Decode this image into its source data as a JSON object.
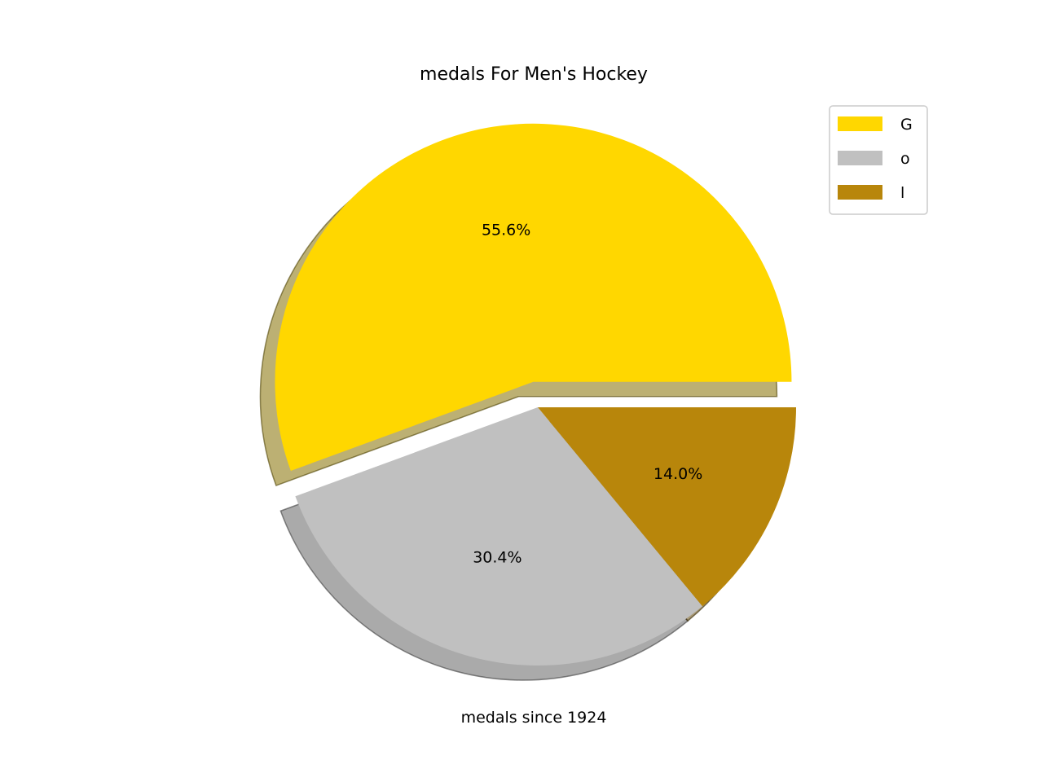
{
  "chart_data": {
    "type": "pie",
    "title": "medals For Men's Hockey",
    "xlabel": "medals since 1924",
    "slices": [
      {
        "label": "G",
        "value": 55.6,
        "pct_label": "55.6%",
        "color": "#FFD700",
        "explode": true
      },
      {
        "label": "o",
        "value": 30.4,
        "pct_label": "30.4%",
        "color": "#C0C0C0",
        "explode": false
      },
      {
        "label": "l",
        "value": 14.0,
        "pct_label": "14.0%",
        "color": "#B8860B",
        "explode": false
      }
    ],
    "start_angle": 0,
    "direction": "counterclockwise",
    "shadow": true,
    "legend": {
      "placement": "top-right",
      "entries": [
        "G",
        "o",
        "l"
      ]
    }
  }
}
